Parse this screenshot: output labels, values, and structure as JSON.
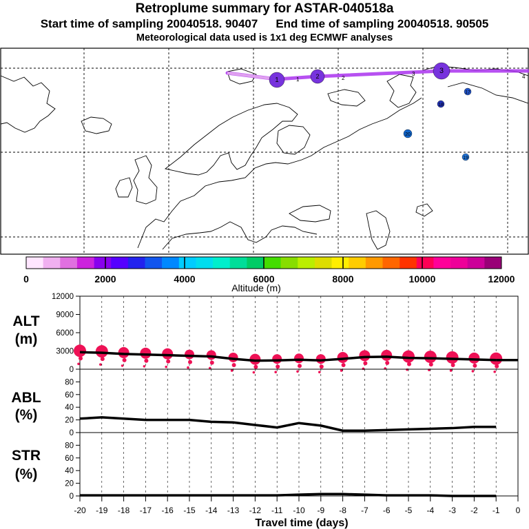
{
  "header": {
    "title": "Retroplume summary for ASTAR-040518a",
    "start_label": "Start time of sampling 20040518. 90407",
    "end_label": "End time of sampling 20040518. 90505",
    "subtitle": "Meteorological data used is 1x1 deg ECMWF analyses"
  },
  "map": {
    "plume_color": "#aa33ee",
    "cluster_labels": [
      {
        "label": "1",
        "day": 1,
        "color": "#7733dd"
      },
      {
        "label": "2",
        "day": 2,
        "color": "#7733dd"
      },
      {
        "label": "3",
        "day": 3,
        "color": "#7733dd"
      },
      {
        "label": "17",
        "day": 17,
        "color": "#2255cc"
      },
      {
        "label": "18",
        "day": 18,
        "color": "#2233bb"
      },
      {
        "label": "19",
        "day": 19,
        "color": "#2277dd"
      },
      {
        "label": "20",
        "day": 20,
        "color": "#1166cc"
      }
    ],
    "trail_day_labels": [
      "1",
      "2",
      "3",
      "4"
    ]
  },
  "colorbar": {
    "colors": [
      "#ffe6ff",
      "#f0b0f0",
      "#e070e0",
      "#cc22dd",
      "#8800ee",
      "#5500ff",
      "#2222ee",
      "#1155ee",
      "#0088ff",
      "#00ccff",
      "#00ddee",
      "#00eecc",
      "#00dd99",
      "#00cc66",
      "#44dd00",
      "#88dd00",
      "#bbee00",
      "#dddd00",
      "#ffee00",
      "#ffcc00",
      "#ff9900",
      "#ff6600",
      "#ff3300",
      "#ff0055",
      "#ff0099",
      "#ee0099",
      "#cc0099",
      "#990077"
    ],
    "tick_labels": [
      "0",
      "2000",
      "4000",
      "6000",
      "8000",
      "10000",
      "12000"
    ],
    "axis_label": "Altitude (m)"
  },
  "chart_data": [
    {
      "type": "line",
      "name": "alt",
      "ylabel": "ALT\n(m)",
      "ylabel_lines": [
        "ALT",
        "(m)"
      ],
      "xlim": [
        -20,
        0
      ],
      "ylim": [
        0,
        12000
      ],
      "yticks": [
        "0",
        "3000",
        "6000",
        "9000",
        "12000"
      ],
      "x": [
        -20,
        -19,
        -18,
        -17,
        -16,
        -15,
        -14,
        -13,
        -12,
        -11,
        -10,
        -9,
        -8,
        -7,
        -6,
        -5,
        -4,
        -3,
        -2,
        -1
      ],
      "values": [
        2800,
        2700,
        2500,
        2400,
        2300,
        2200,
        2100,
        1700,
        1400,
        1450,
        1550,
        1450,
        1700,
        2000,
        2050,
        1850,
        1800,
        1700,
        1600,
        1500
      ],
      "marker_color": "#ee1155",
      "marker_sizes": [
        9,
        9,
        8,
        8,
        8,
        7,
        7,
        7,
        8,
        7,
        7,
        7,
        8,
        8,
        8,
        9,
        9,
        9,
        8,
        9
      ]
    },
    {
      "type": "line",
      "name": "abl",
      "ylabel_lines": [
        "ABL",
        "(%)"
      ],
      "xlim": [
        -20,
        0
      ],
      "ylim": [
        0,
        100
      ],
      "yticks": [
        "0",
        "20",
        "40",
        "60",
        "80"
      ],
      "x": [
        -20,
        -19,
        -18,
        -17,
        -16,
        -15,
        -14,
        -13,
        -12,
        -11,
        -10,
        -9,
        -8,
        -7,
        -6,
        -5,
        -4,
        -3,
        -2,
        -1
      ],
      "values": [
        22,
        24,
        22,
        20,
        20,
        20,
        17,
        16,
        12,
        8,
        15,
        11,
        3,
        3,
        4,
        5,
        6,
        7,
        9,
        9
      ]
    },
    {
      "type": "line",
      "name": "str",
      "ylabel_lines": [
        "STR",
        "(%)"
      ],
      "xlim": [
        -20,
        0
      ],
      "ylim": [
        0,
        100
      ],
      "yticks": [
        "0",
        "20",
        "40",
        "60",
        "80"
      ],
      "x": [
        -20,
        -19,
        -18,
        -17,
        -16,
        -15,
        -14,
        -13,
        -12,
        -11,
        -10,
        -9,
        -8,
        -7,
        -6,
        -5,
        -4,
        -3,
        -2,
        -1
      ],
      "values": [
        1,
        1,
        1,
        1,
        1,
        1,
        1,
        1,
        1,
        1,
        2,
        3,
        3,
        2,
        1,
        1,
        1,
        0,
        0,
        0
      ]
    }
  ],
  "xaxis": {
    "ticks": [
      "-20",
      "-19",
      "-18",
      "-17",
      "-16",
      "-15",
      "-14",
      "-13",
      "-12",
      "-11",
      "-10",
      "-9",
      "-8",
      "-7",
      "-6",
      "-5",
      "-4",
      "-3",
      "-2",
      "-1",
      "0"
    ],
    "label": "Travel time (days)"
  }
}
